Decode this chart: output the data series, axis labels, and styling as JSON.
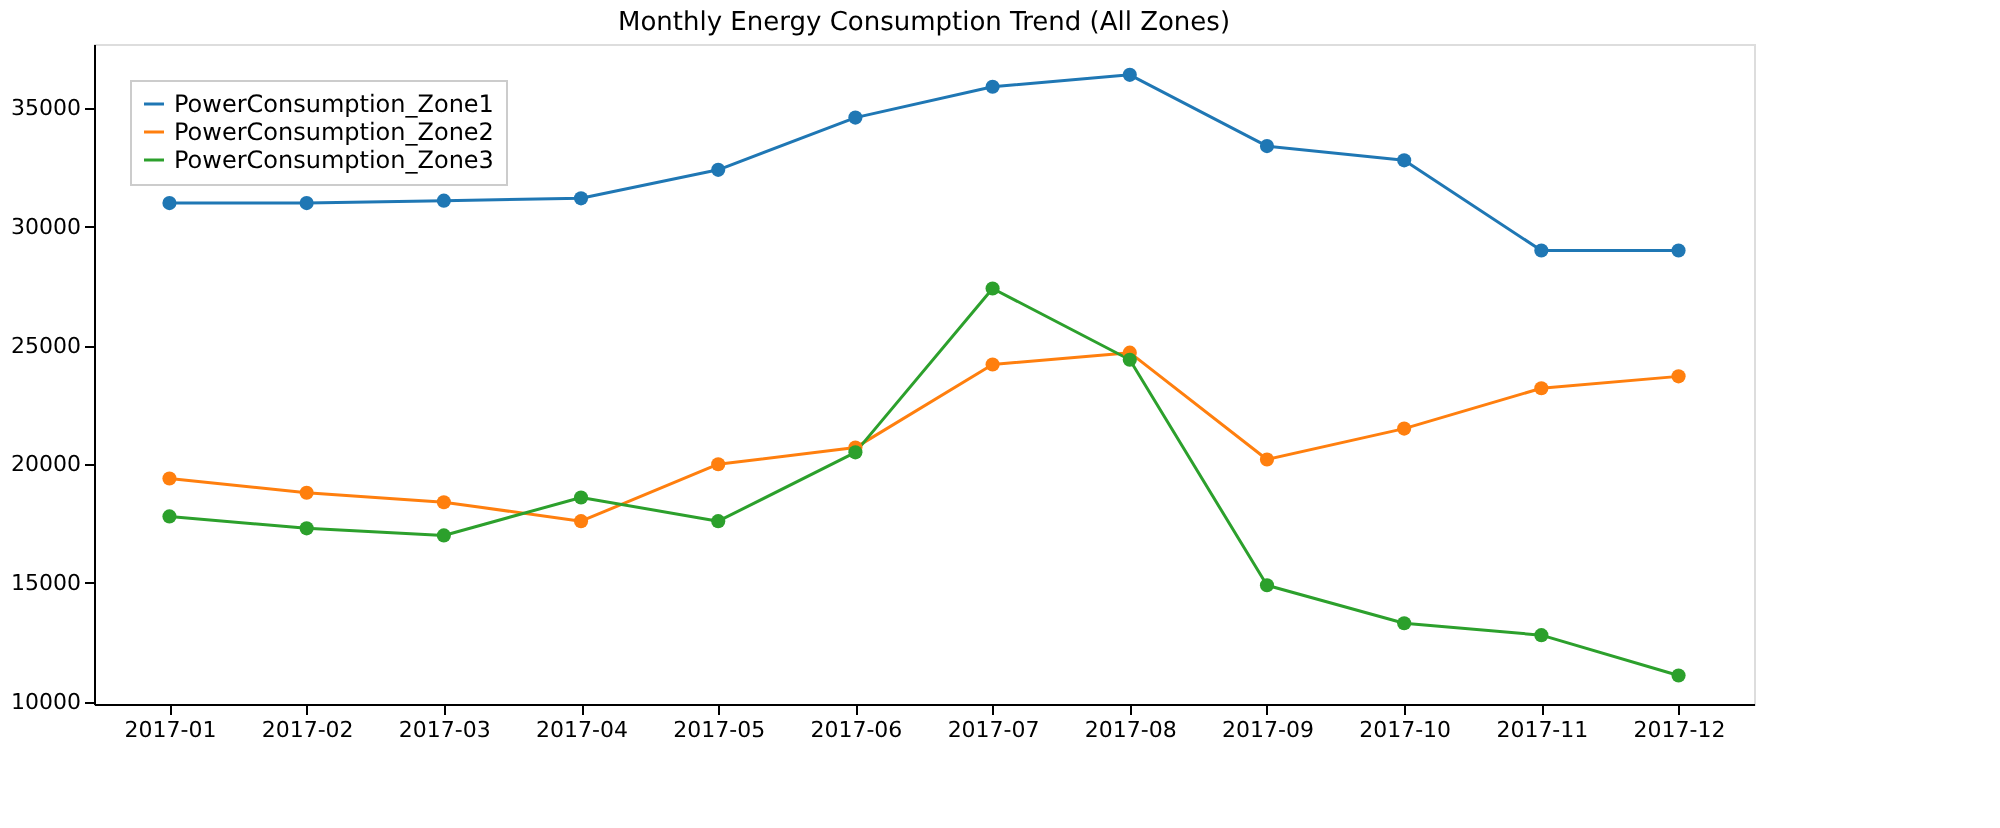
{
  "chart_data": {
    "type": "line",
    "title": "Monthly Energy Consumption Trend (All Zones)",
    "categories": [
      "2017-01",
      "2017-02",
      "2017-03",
      "2017-04",
      "2017-05",
      "2017-06",
      "2017-07",
      "2017-08",
      "2017-09",
      "2017-10",
      "2017-11",
      "2017-12"
    ],
    "series": [
      {
        "name": "PowerConsumption_Zone1",
        "color": "#1f77b4",
        "values": [
          31000,
          31000,
          31100,
          31200,
          32400,
          34600,
          35900,
          36400,
          33400,
          32800,
          29000,
          29000
        ]
      },
      {
        "name": "PowerConsumption_Zone2",
        "color": "#ff7f0e",
        "values": [
          19400,
          18800,
          18400,
          17600,
          20000,
          20700,
          24200,
          24700,
          20200,
          21500,
          23200,
          23700
        ]
      },
      {
        "name": "PowerConsumption_Zone3",
        "color": "#2ca02c",
        "values": [
          17800,
          17300,
          17000,
          18600,
          17600,
          20500,
          27400,
          24400,
          14900,
          13300,
          12800,
          11100
        ]
      }
    ],
    "ylim": [
      9900,
      37700
    ],
    "yticks": [
      10000,
      15000,
      20000,
      25000,
      30000,
      35000
    ],
    "grid": false,
    "legend": "top left",
    "marker": "circle",
    "line_style": "solid"
  }
}
